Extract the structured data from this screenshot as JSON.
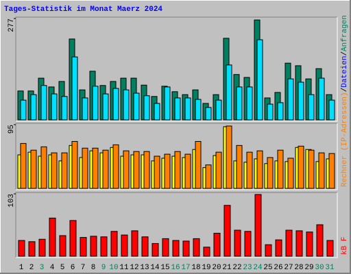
{
  "chart_data": [
    {
      "type": "bar",
      "title": "Tages-Statistik im Monat Maerz 2024",
      "legend_separator": "/",
      "ylim": [
        0,
        277
      ],
      "yticks": [
        277
      ],
      "series": [
        {
          "name": "Anfragen",
          "color": "#008060",
          "values": [
            79,
            79,
            114,
            90,
            105,
            221,
            82,
            133,
            94,
            105,
            114,
            114,
            95,
            64,
            92,
            77,
            69,
            82,
            45,
            69,
            223,
            124,
            116,
            273,
            60,
            75,
            155,
            148,
            112,
            140,
            69
          ]
        },
        {
          "name": "Dateien",
          "color": "#00e0ff",
          "values": [
            54,
            69,
            94,
            71,
            64,
            172,
            60,
            92,
            71,
            86,
            82,
            73,
            66,
            45,
            90,
            60,
            60,
            56,
            34,
            54,
            150,
            90,
            90,
            219,
            43,
            47,
            112,
            103,
            69,
            114,
            54
          ]
        }
      ]
    },
    {
      "type": "bar",
      "ylim": [
        0,
        95
      ],
      "yticks": [
        95
      ],
      "series": [
        {
          "color": "#ffff00",
          "values": [
            50,
            54,
            48,
            50,
            41,
            64,
            46,
            56,
            53,
            61,
            48,
            50,
            50,
            41,
            45,
            48,
            46,
            58,
            31,
            49,
            92,
            41,
            39,
            44,
            37,
            41,
            40,
            61,
            58,
            40,
            44
          ]
        },
        {
          "name": "Rechner (IP-Adressen)",
          "color": "#ff8000",
          "values": [
            67,
            57,
            62,
            53,
            53,
            70,
            60,
            60,
            57,
            65,
            56,
            55,
            55,
            48,
            51,
            55,
            51,
            70,
            35,
            54,
            93,
            64,
            54,
            56,
            46,
            57,
            45,
            63,
            57,
            53,
            52
          ]
        }
      ]
    },
    {
      "type": "bar",
      "ylim": [
        0,
        103
      ],
      "yticks": [
        103
      ],
      "categories": [
        "1",
        "2",
        "3",
        "4",
        "5",
        "6",
        "7",
        "8",
        "9",
        "10",
        "11",
        "12",
        "13",
        "14",
        "15",
        "16",
        "17",
        "18",
        "19",
        "20",
        "21",
        "22",
        "23",
        "24",
        "25",
        "26",
        "27",
        "28",
        "29",
        "30",
        "31"
      ],
      "category_colors": [
        "#000000",
        "#000000",
        "#008060",
        "#000000",
        "#000000",
        "#000000",
        "#000000",
        "#000000",
        "#008060",
        "#008060",
        "#000000",
        "#000000",
        "#000000",
        "#000000",
        "#000000",
        "#008060",
        "#008060",
        "#000000",
        "#000000",
        "#000000",
        "#000000",
        "#000000",
        "#008060",
        "#008060",
        "#000000",
        "#000000",
        "#000000",
        "#000000",
        "#000000",
        "#008060",
        "#008060"
      ],
      "series": [
        {
          "name": "kB F",
          "color": "#ff0000",
          "values": [
            26,
            24,
            28,
            63,
            34,
            59,
            31,
            33,
            32,
            41,
            35,
            42,
            32,
            21,
            29,
            26,
            25,
            29,
            15,
            38,
            84,
            43,
            41,
            102,
            19,
            27,
            43,
            42,
            40,
            52,
            26
          ]
        }
      ]
    }
  ]
}
